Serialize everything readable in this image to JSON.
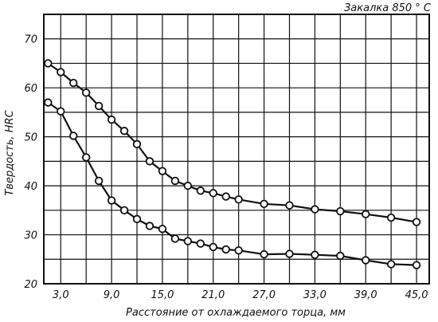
{
  "chart_data": {
    "type": "line",
    "title": "Закалка 850 ° C",
    "xlabel": "Расстояние от охлаждаемого торца, мм",
    "ylabel": "Твердость, HRC",
    "xlim": [
      1.0,
      46.5
    ],
    "ylim": [
      20,
      75
    ],
    "x_ticks": [
      3,
      9,
      15,
      21,
      27,
      33,
      39,
      45
    ],
    "x_tick_labels": [
      "3,0",
      "9,0",
      "15,0",
      "21,0",
      "27,0",
      "33,0",
      "39,0",
      "45,0"
    ],
    "y_ticks": [
      20,
      30,
      40,
      50,
      60,
      70
    ],
    "y_tick_labels": [
      "20",
      "30",
      "40",
      "50",
      "60",
      "70"
    ],
    "grid": true,
    "series": [
      {
        "x": [
          1.5,
          3.0,
          4.5,
          6.0,
          7.5,
          9.0,
          10.5,
          12.0,
          13.5,
          15.0,
          16.5,
          18.0,
          19.5,
          21.0,
          22.5,
          24.0,
          27.0,
          30.0,
          33.0,
          36.0,
          39.0,
          42.0,
          45.0
        ],
        "y": [
          65,
          63.2,
          61,
          59,
          56.3,
          53.5,
          51.2,
          48.5,
          45,
          43,
          41,
          40,
          39,
          38.5,
          37.8,
          37.2,
          36.3,
          36,
          35.2,
          34.8,
          34.2,
          33.5,
          32.6
        ]
      },
      {
        "x": [
          1.5,
          3.0,
          4.5,
          6.0,
          7.5,
          9.0,
          10.5,
          12.0,
          13.5,
          15.0,
          16.5,
          18.0,
          19.5,
          21.0,
          22.5,
          24.0,
          27.0,
          30.0,
          33.0,
          36.0,
          39.0,
          42.0,
          45.0
        ],
        "y": [
          57,
          55.2,
          50.2,
          45.8,
          41,
          37,
          35,
          33.2,
          31.8,
          31.2,
          29.2,
          28.7,
          28.2,
          27.5,
          27,
          26.8,
          26,
          26.1,
          25.9,
          25.7,
          24.8,
          24,
          23.8
        ]
      }
    ]
  }
}
